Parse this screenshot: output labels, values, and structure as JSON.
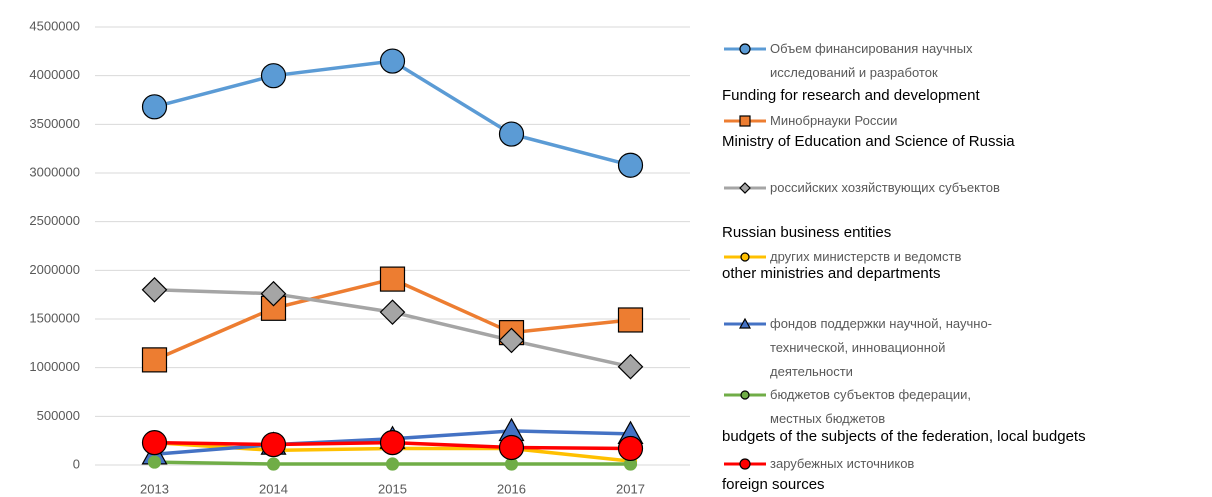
{
  "chart_data": {
    "type": "line",
    "x": [
      "2013",
      "2014",
      "2015",
      "2016",
      "2017"
    ],
    "ylim": [
      0,
      4500000
    ],
    "yticks": [
      0,
      500000,
      1000000,
      1500000,
      2000000,
      2500000,
      3000000,
      3500000,
      4000000,
      4500000
    ],
    "grid": true,
    "legend": "right",
    "series": [
      {
        "name": "Объем финансирования научных исследований и разработок",
        "translation": "Funding for research and development",
        "color": "#5b9bd5",
        "marker": "circle",
        "values": [
          3680000,
          4000000,
          4150000,
          3400000,
          3080000
        ]
      },
      {
        "name": "Минобрнауки России",
        "translation": "Ministry of Education and Science of Russia",
        "color": "#ed7d31",
        "marker": "square",
        "values": [
          1080000,
          1610000,
          1910000,
          1360000,
          1490000
        ]
      },
      {
        "name": "российских хозяйствующих субъектов",
        "translation": "Russian business entities",
        "color": "#a5a5a5",
        "marker": "diamond",
        "values": [
          1800000,
          1760000,
          1570000,
          1280000,
          1010000
        ]
      },
      {
        "name": "других министерств и ведомств",
        "translation": "other ministries and departments",
        "color": "#ffc000",
        "marker": "dot",
        "values": [
          230000,
          150000,
          170000,
          170000,
          40000
        ]
      },
      {
        "name": "фондов поддержки научной, научно- технической, инновационной деятельности",
        "color": "#4472c4",
        "marker": "triangle",
        "values": [
          110000,
          210000,
          270000,
          350000,
          320000
        ]
      },
      {
        "name": "бюджетов субъектов федерации, местных бюджетов",
        "translation": "budgets of the subjects of the federation, local budgets",
        "color": "#70ad47",
        "marker": "dot",
        "values": [
          30000,
          10000,
          10000,
          10000,
          10000
        ]
      },
      {
        "name": "зарубежных источников",
        "translation": "foreign sources",
        "color": "#ff0000",
        "marker": "circle",
        "values": [
          230000,
          210000,
          230000,
          180000,
          170000
        ]
      }
    ]
  }
}
